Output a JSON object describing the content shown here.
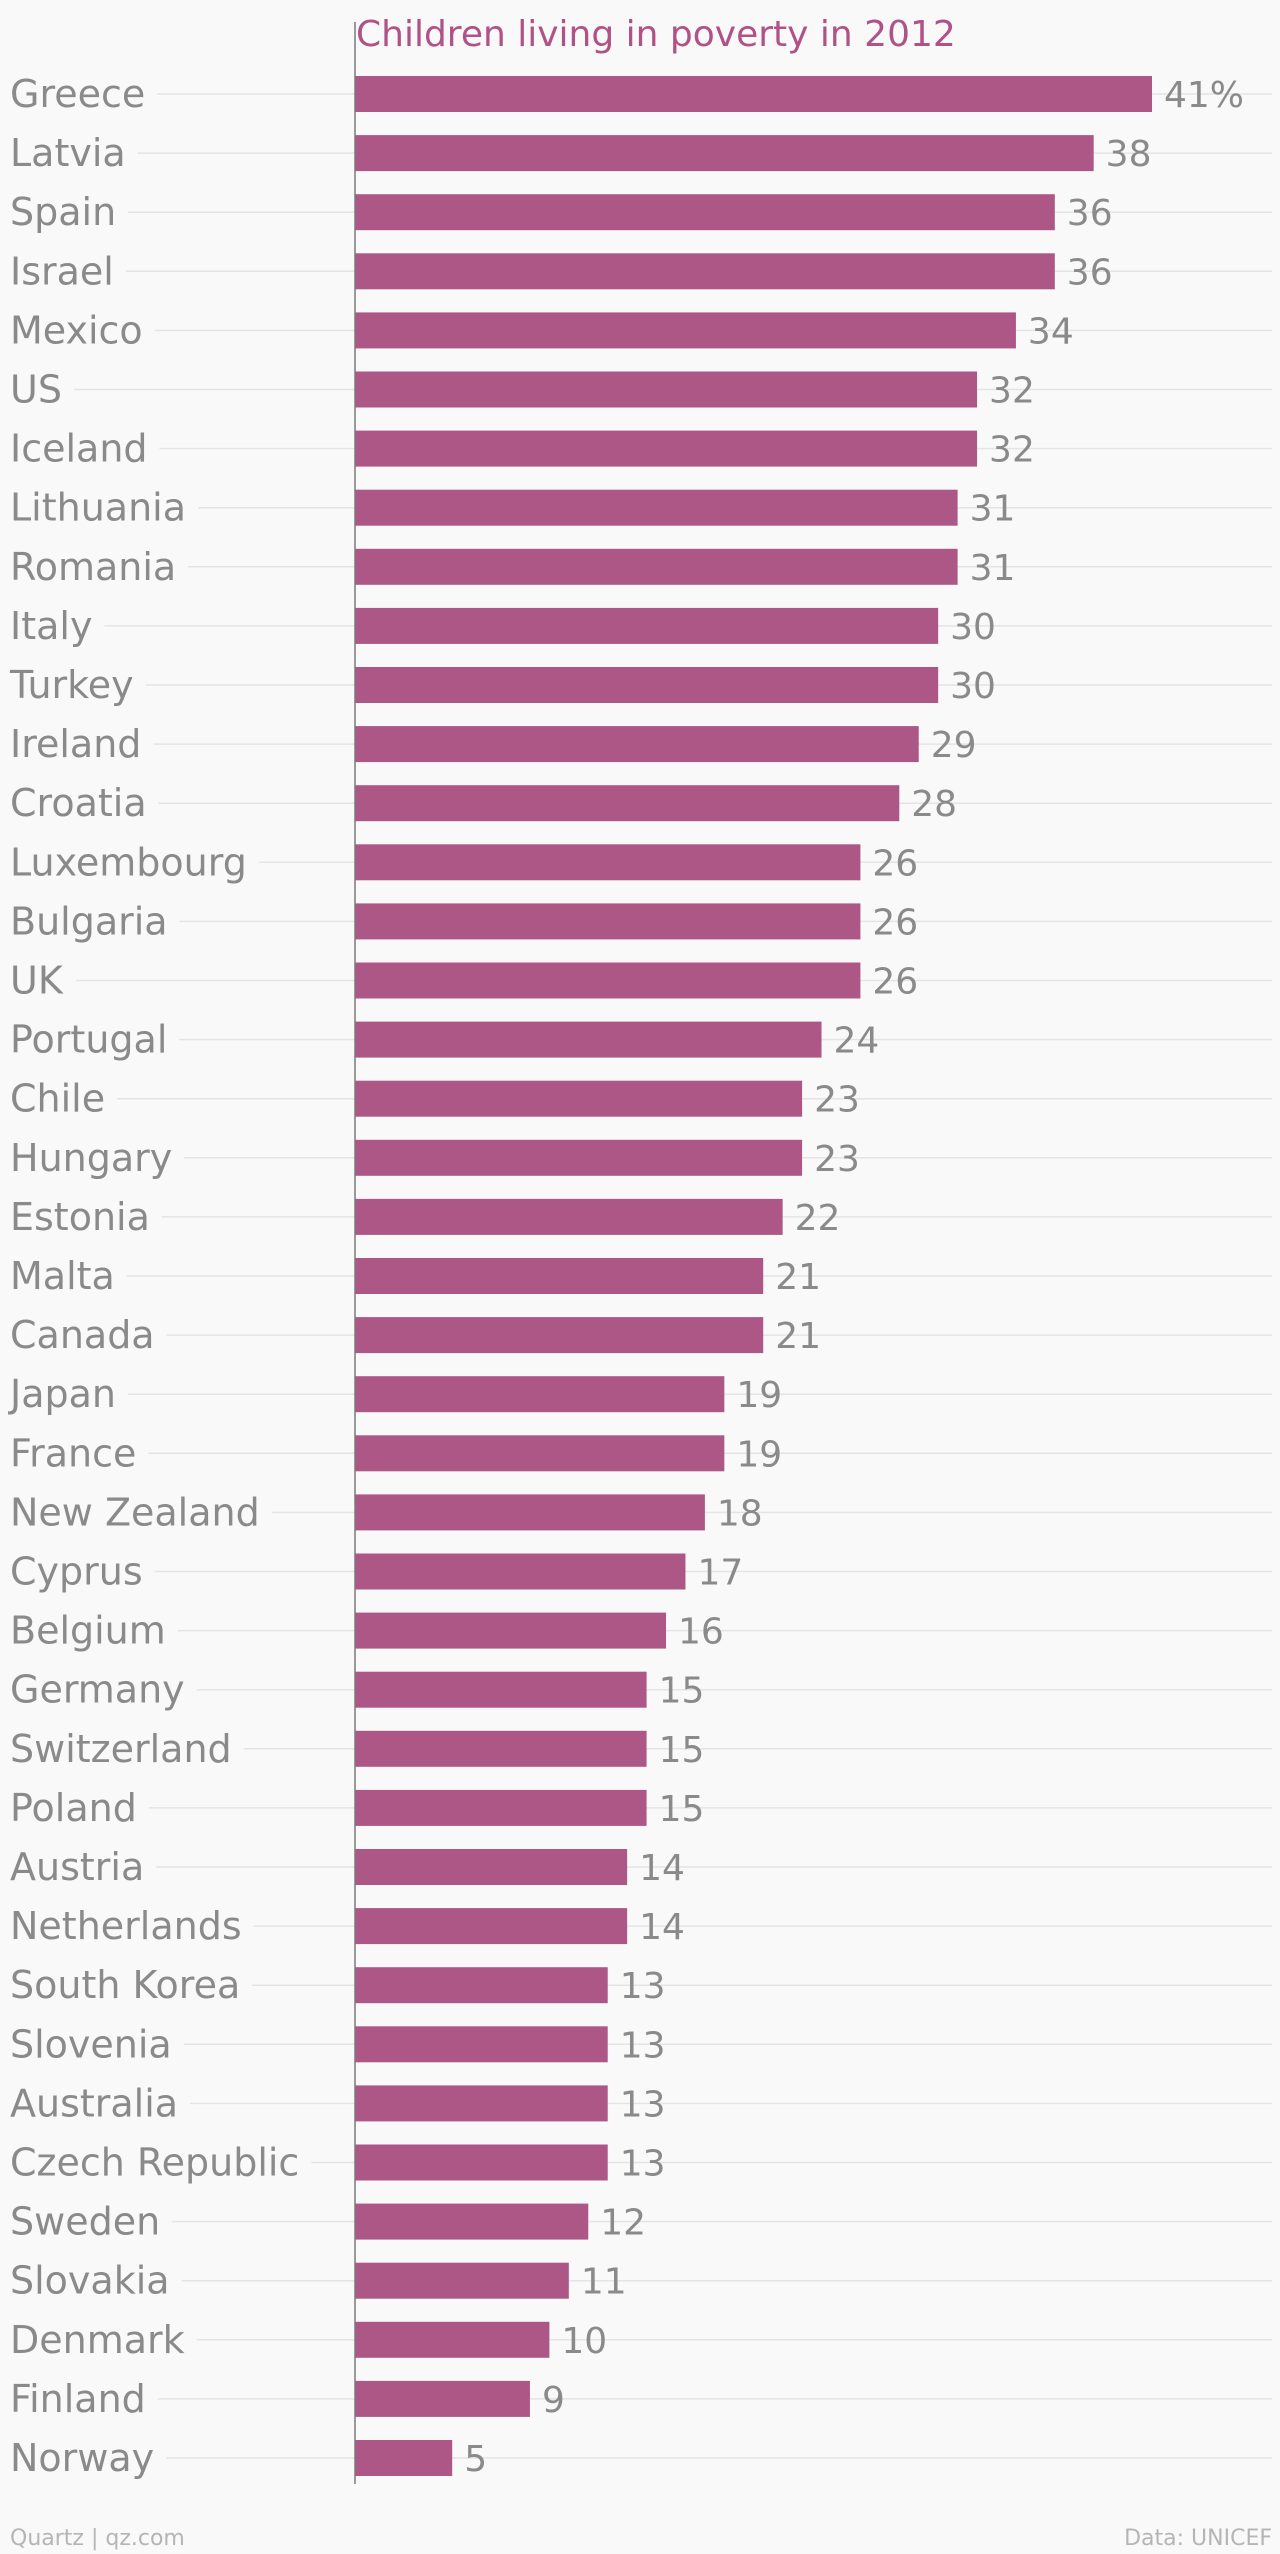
{
  "chart_data": {
    "type": "bar",
    "orientation": "horizontal",
    "title": "Children living in poverty in 2012",
    "categories": [
      "Greece",
      "Latvia",
      "Spain",
      "Israel",
      "Mexico",
      "US",
      "Iceland",
      "Lithuania",
      "Romania",
      "Italy",
      "Turkey",
      "Ireland",
      "Croatia",
      "Luxembourg",
      "Bulgaria",
      "UK",
      "Portugal",
      "Chile",
      "Hungary",
      "Estonia",
      "Malta",
      "Canada",
      "Japan",
      "France",
      "New Zealand",
      "Cyprus",
      "Belgium",
      "Germany",
      "Switzerland",
      "Poland",
      "Austria",
      "Netherlands",
      "South Korea",
      "Slovenia",
      "Australia",
      "Czech Republic",
      "Sweden",
      "Slovakia",
      "Denmark",
      "Finland",
      "Norway"
    ],
    "values": [
      41,
      38,
      36,
      36,
      34,
      32,
      32,
      31,
      31,
      30,
      30,
      29,
      28,
      26,
      26,
      26,
      24,
      23,
      23,
      22,
      21,
      21,
      19,
      19,
      18,
      17,
      16,
      15,
      15,
      15,
      14,
      14,
      13,
      13,
      13,
      13,
      12,
      11,
      10,
      9,
      5
    ],
    "value_labels": [
      "41%",
      "38",
      "36",
      "36",
      "34",
      "32",
      "32",
      "31",
      "31",
      "30",
      "30",
      "29",
      "28",
      "26",
      "26",
      "26",
      "24",
      "23",
      "23",
      "22",
      "21",
      "21",
      "19",
      "19",
      "18",
      "17",
      "16",
      "15",
      "15",
      "15",
      "14",
      "14",
      "13",
      "13",
      "13",
      "13",
      "12",
      "11",
      "10",
      "9",
      "5"
    ],
    "unit": "%",
    "xlim": [
      0,
      41
    ],
    "grid": true,
    "legend": "none",
    "bar_color": "#ad5787",
    "title_color": "#b15287",
    "label_color": "#8a8a8a"
  },
  "footer": {
    "source_left": "Quartz | qz.com",
    "source_right": "Data: UNICEF"
  }
}
